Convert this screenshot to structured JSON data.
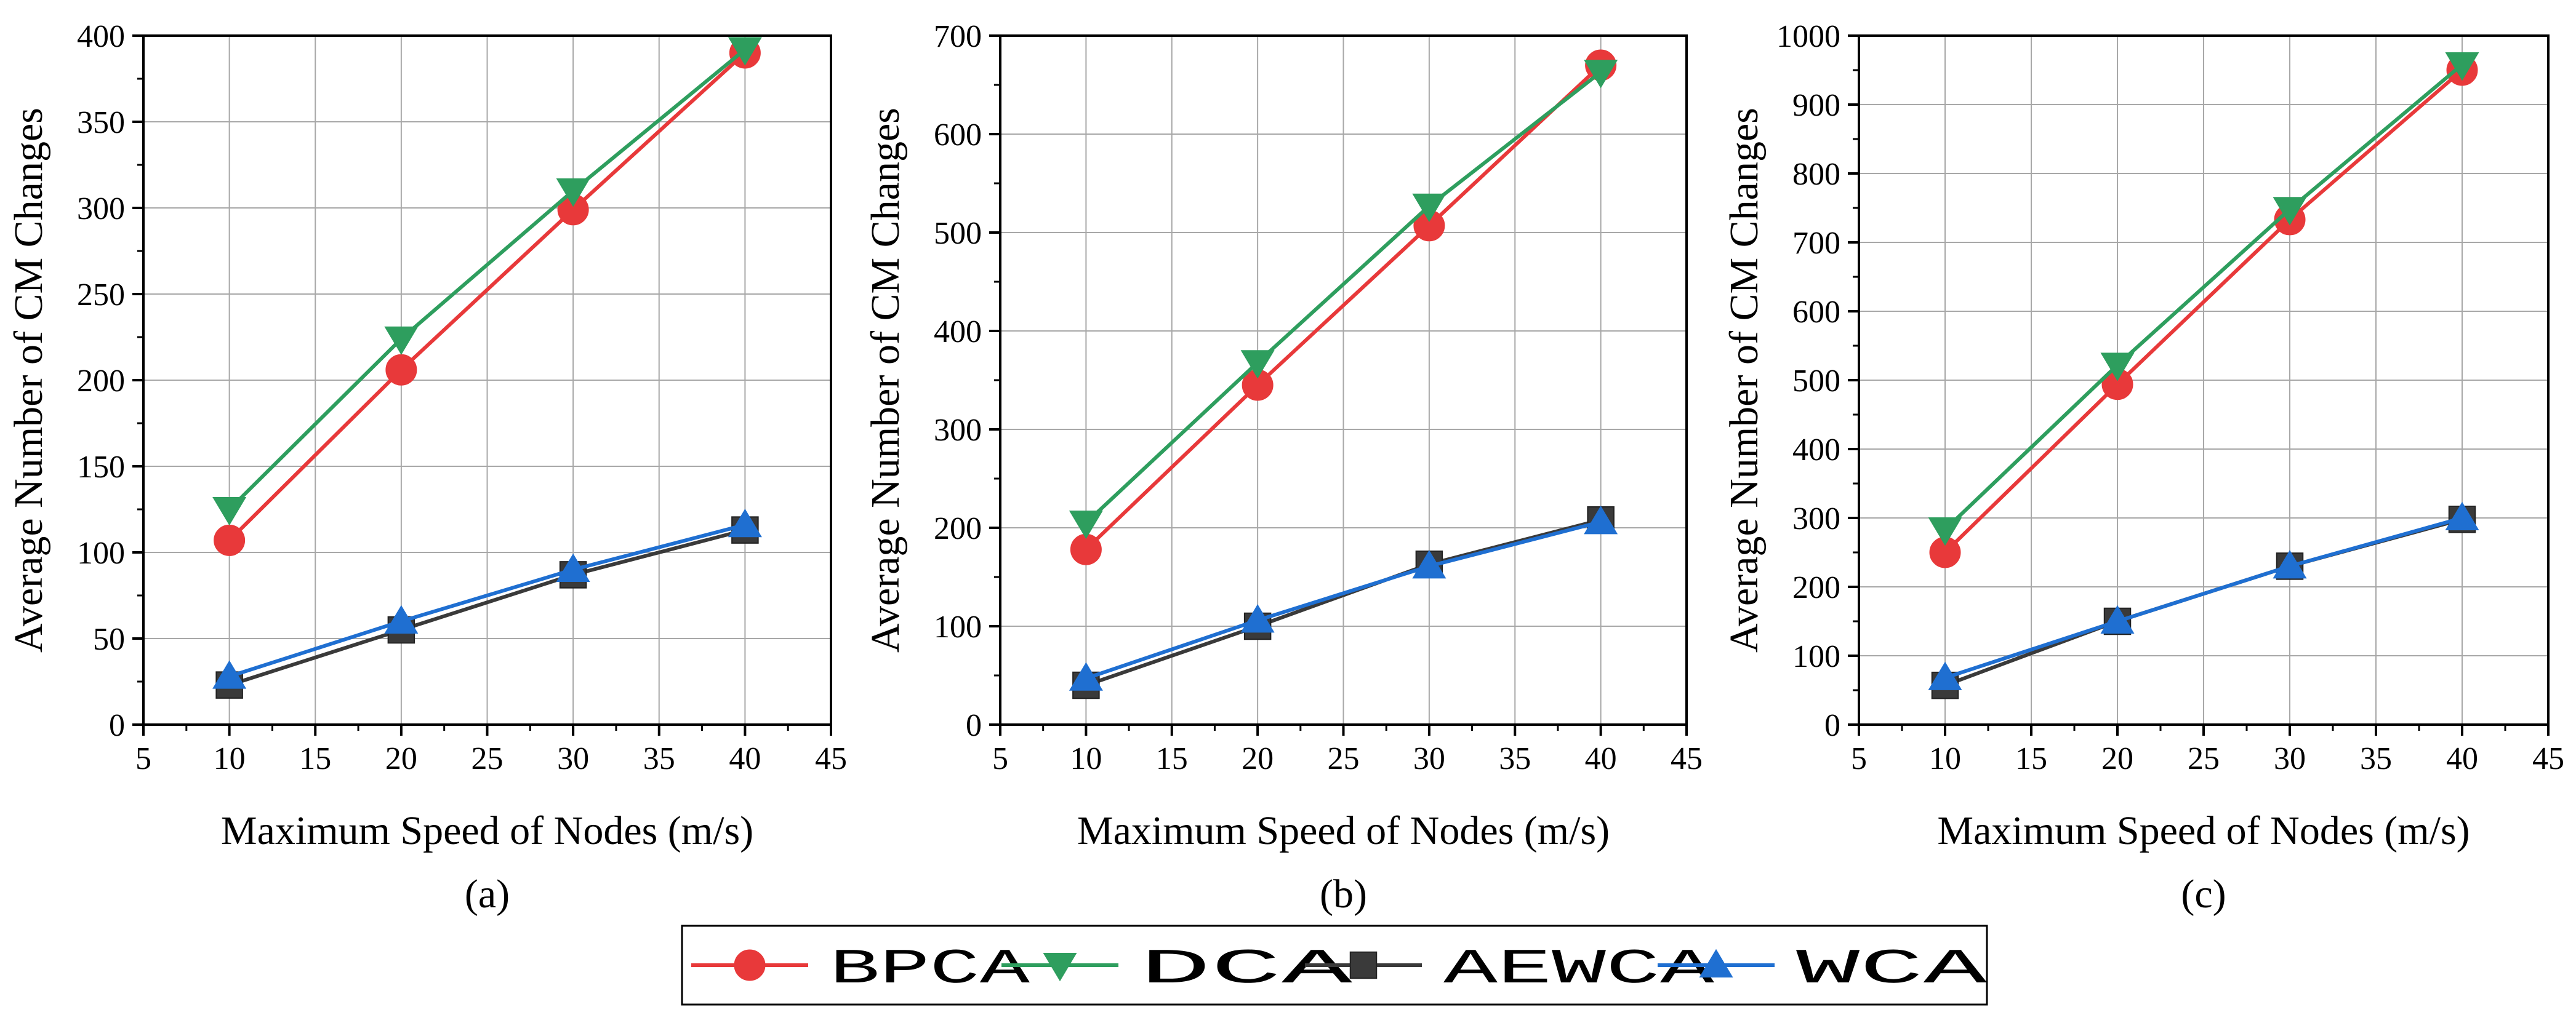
{
  "legend": [
    {
      "name": "BPCA",
      "color": "#e8393a",
      "marker": "circle"
    },
    {
      "name": "DCA",
      "color": "#2e9e5e",
      "marker": "triangle-down"
    },
    {
      "name": "AEWCA",
      "color": "#3a3a3a",
      "marker": "square"
    },
    {
      "name": "WCA",
      "color": "#1f6fd1",
      "marker": "triangle-up"
    }
  ],
  "chart_data": [
    {
      "type": "line",
      "panel_label": "(a)",
      "xlabel": "Maximum Speed of Nodes (m/s)",
      "ylabel": "Average Number of CM Changes",
      "xlim": [
        5,
        45
      ],
      "ylim": [
        0,
        400
      ],
      "xticks": [
        "5",
        "10",
        "15",
        "20",
        "25",
        "30",
        "35",
        "40",
        "45"
      ],
      "yticks": [
        "0",
        "50",
        "100",
        "150",
        "200",
        "250",
        "300",
        "350",
        "400"
      ],
      "grid": true,
      "x": [
        10,
        20,
        30,
        40
      ],
      "series": [
        {
          "name": "BPCA",
          "values": [
            107,
            206,
            299,
            390
          ]
        },
        {
          "name": "DCA",
          "values": [
            125,
            224,
            310,
            392
          ]
        },
        {
          "name": "AEWCA",
          "values": [
            23,
            55,
            87,
            113
          ]
        },
        {
          "name": "WCA",
          "values": [
            28,
            60,
            90,
            116
          ]
        }
      ]
    },
    {
      "type": "line",
      "panel_label": "(b)",
      "xlabel": "Maximum Speed of Nodes (m/s)",
      "ylabel": "Average Number of CM Changes",
      "xlim": [
        5,
        45
      ],
      "ylim": [
        0,
        700
      ],
      "xticks": [
        "5",
        "10",
        "15",
        "20",
        "25",
        "30",
        "35",
        "40",
        "45"
      ],
      "yticks": [
        "0",
        "100",
        "200",
        "300",
        "400",
        "500",
        "600",
        "700"
      ],
      "grid": true,
      "x": [
        10,
        20,
        30,
        40
      ],
      "series": [
        {
          "name": "BPCA",
          "values": [
            178,
            345,
            507,
            670
          ]
        },
        {
          "name": "DCA",
          "values": [
            205,
            368,
            527,
            663
          ]
        },
        {
          "name": "AEWCA",
          "values": [
            40,
            100,
            163,
            208
          ]
        },
        {
          "name": "WCA",
          "values": [
            47,
            106,
            161,
            206
          ]
        }
      ]
    },
    {
      "type": "line",
      "panel_label": "(c)",
      "xlabel": "Maximum Speed of Nodes (m/s)",
      "ylabel": "Average Number of CM Changes",
      "xlim": [
        5,
        45
      ],
      "ylim": [
        0,
        1000
      ],
      "xticks": [
        "5",
        "10",
        "15",
        "20",
        "25",
        "30",
        "35",
        "40",
        "45"
      ],
      "yticks": [
        "0",
        "100",
        "200",
        "300",
        "400",
        "500",
        "600",
        "700",
        "800",
        "900",
        "1000"
      ],
      "grid": true,
      "x": [
        10,
        20,
        30,
        40
      ],
      "series": [
        {
          "name": "BPCA",
          "values": [
            250,
            494,
            733,
            950
          ]
        },
        {
          "name": "DCA",
          "values": [
            283,
            522,
            748,
            958
          ]
        },
        {
          "name": "AEWCA",
          "values": [
            57,
            150,
            230,
            298
          ]
        },
        {
          "name": "WCA",
          "values": [
            68,
            150,
            230,
            300
          ]
        }
      ]
    }
  ]
}
